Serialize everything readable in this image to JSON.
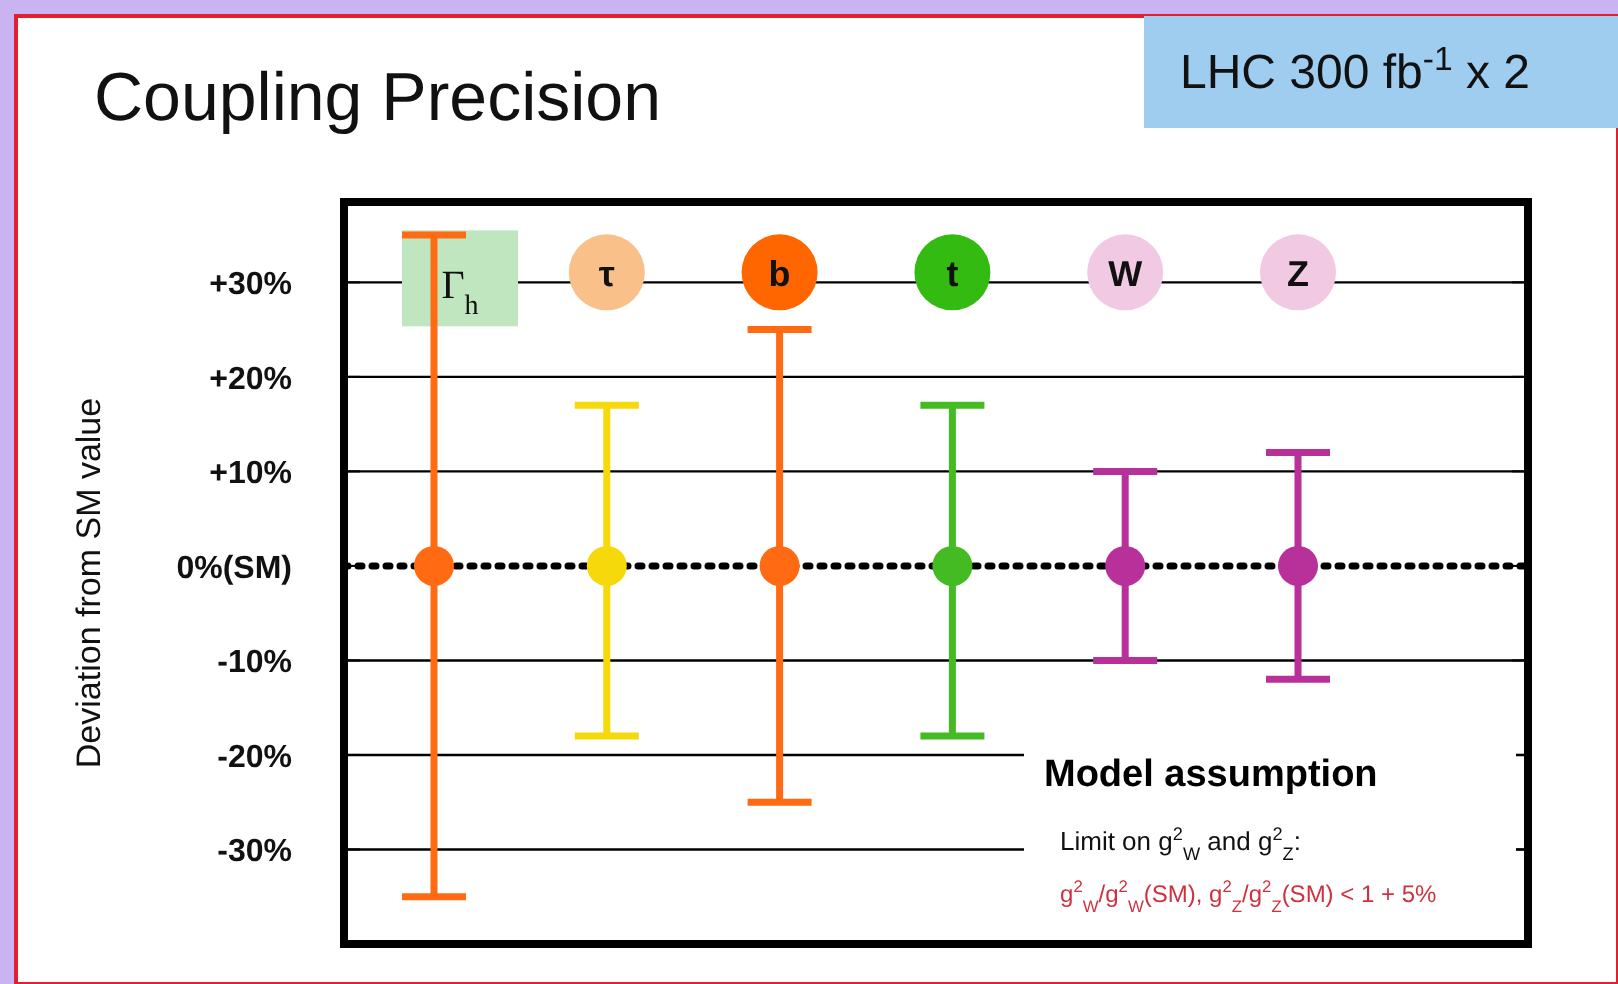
{
  "chart_data": {
    "type": "scatter",
    "title": "Coupling Precision",
    "subtitle": "LHC 300 fb$^{-1}$ x 2",
    "ylabel": "Deviation from SM value",
    "categories": [
      "Γ$_{h}$",
      "τ",
      "b",
      "t",
      "W",
      "Z"
    ],
    "values": [
      0,
      0,
      0,
      0,
      0,
      0
    ],
    "colors": [
      "#ff6a13",
      "#f5d90a",
      "#ff6a13",
      "#44bb22",
      "#b8309a",
      "#b8309a"
    ],
    "errors": [
      [
        -35,
        35
      ],
      [
        -18,
        17
      ],
      [
        -25,
        25
      ],
      [
        -18,
        17
      ],
      [
        -10,
        10
      ],
      [
        -12,
        12
      ]
    ],
    "ylim": [
      -40,
      38.5
    ],
    "yticks": [
      {
        "value": 30,
        "label": "+30%"
      },
      {
        "value": 20,
        "label": "+20%"
      },
      {
        "value": 10,
        "label": "+10%"
      },
      {
        "value": 0,
        "label": "0%(SM)"
      },
      {
        "value": -10,
        "label": "-10%"
      },
      {
        "value": -20,
        "label": "-20%"
      },
      {
        "value": -30,
        "label": "-30%"
      }
    ],
    "grid": "y",
    "marker": "circle",
    "ref_lines": [
      {
        "axis": "y",
        "value": 0,
        "line_style": "dotted",
        "color": "#000000"
      }
    ],
    "annotations": [
      "Model assumption",
      "Limit on g$^{2}$$_{W}$ and g$^{2}$$_{Z}$:",
      "g$^{2}$$_{W}$/g$^{2}$$_{W}$(SM), g$^{2}$$_{Z}$/g$^{2}$$_{Z}$(SM) < 1 + 5%"
    ]
  }
}
